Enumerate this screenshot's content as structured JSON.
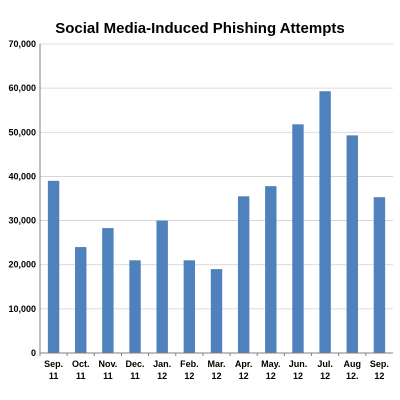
{
  "chart_data": {
    "type": "bar",
    "title": "Social Media-Induced Phishing Attempts",
    "categories": [
      [
        "Sep.",
        "11"
      ],
      [
        "Oct.",
        "11"
      ],
      [
        "Nov.",
        "11"
      ],
      [
        "Dec.",
        "11"
      ],
      [
        "Jan.",
        "12"
      ],
      [
        "Feb.",
        "12"
      ],
      [
        "Mar.",
        "12"
      ],
      [
        "Apr.",
        "12"
      ],
      [
        "May.",
        "12"
      ],
      [
        "Jun.",
        "12"
      ],
      [
        "Jul.",
        "12"
      ],
      [
        "Aug",
        "12."
      ],
      [
        "Sep.",
        "12"
      ]
    ],
    "values": [
      39000,
      24000,
      28300,
      21000,
      30000,
      21000,
      19000,
      35500,
      37800,
      51800,
      59300,
      49300,
      35300
    ],
    "ylim": [
      0,
      70000
    ],
    "yticks": [
      "0",
      "10,000",
      "20,000",
      "30,000",
      "40,000",
      "50,000",
      "60,000",
      "70,000"
    ],
    "grid": true,
    "bar_color": "#4f81bd"
  }
}
